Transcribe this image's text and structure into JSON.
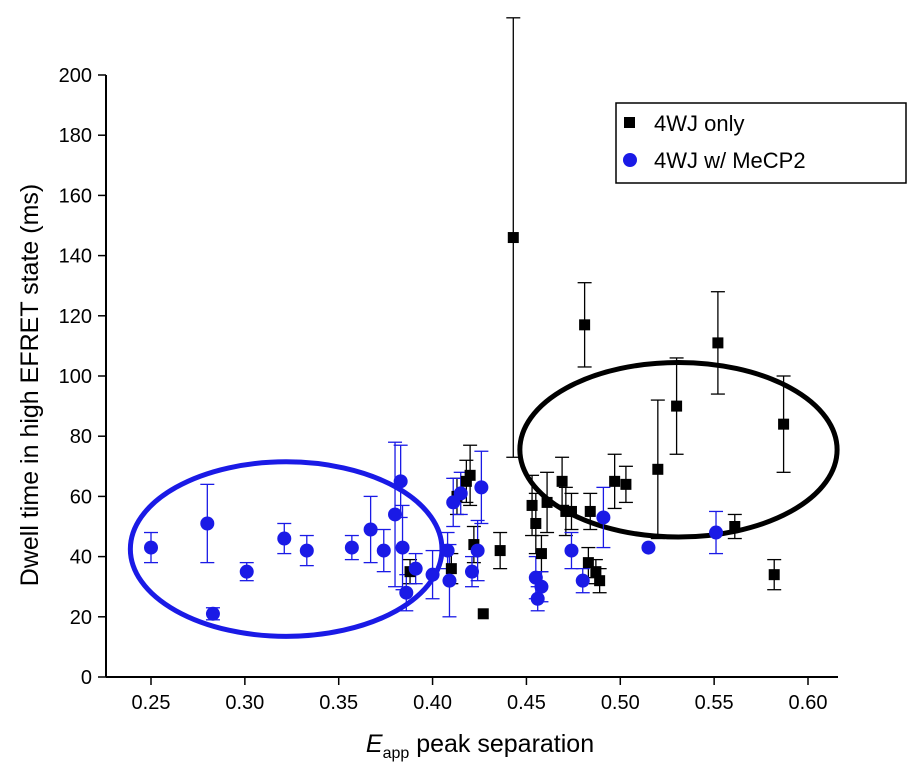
{
  "chart_data": {
    "type": "scatter",
    "title": "",
    "xlabel_main": "E",
    "xlabel_sub": "app",
    "xlabel_rest": " peak separation",
    "ylabel": "Dwell time in high EFRET state (ms)",
    "xlim": [
      0.22,
      0.62
    ],
    "ylim": [
      0,
      200
    ],
    "xticks": [
      "0.25",
      "0.30",
      "0.35",
      "0.40",
      "0.45",
      "0.50",
      "0.55",
      "0.60"
    ],
    "yticks": [
      "0",
      "20",
      "40",
      "60",
      "80",
      "100",
      "120",
      "140",
      "160",
      "180",
      "200"
    ],
    "grid": false,
    "legend_position": "top-right",
    "series": [
      {
        "name": "4WJ only",
        "marker": "square",
        "color": "#000000",
        "points": [
          {
            "x": 0.388,
            "y": 35,
            "err": 4
          },
          {
            "x": 0.41,
            "y": 36,
            "err": 5
          },
          {
            "x": 0.413,
            "y": 60,
            "err": 6
          },
          {
            "x": 0.418,
            "y": 65,
            "err": 7
          },
          {
            "x": 0.42,
            "y": 67,
            "err": 10
          },
          {
            "x": 0.422,
            "y": 44,
            "err": 6
          },
          {
            "x": 0.427,
            "y": 21,
            "err": 0
          },
          {
            "x": 0.436,
            "y": 42,
            "err": 6
          },
          {
            "x": 0.443,
            "y": 146,
            "err": 73
          },
          {
            "x": 0.453,
            "y": 57,
            "err": 10
          },
          {
            "x": 0.455,
            "y": 51,
            "err": 10
          },
          {
            "x": 0.458,
            "y": 41,
            "err": 6
          },
          {
            "x": 0.461,
            "y": 58,
            "err": 10
          },
          {
            "x": 0.469,
            "y": 65,
            "err": 8
          },
          {
            "x": 0.471,
            "y": 55,
            "err": 8
          },
          {
            "x": 0.474,
            "y": 55,
            "err": 6
          },
          {
            "x": 0.481,
            "y": 117,
            "err": 14
          },
          {
            "x": 0.483,
            "y": 38,
            "err": 5
          },
          {
            "x": 0.484,
            "y": 55,
            "err": 6
          },
          {
            "x": 0.487,
            "y": 35,
            "err": 4
          },
          {
            "x": 0.489,
            "y": 32,
            "err": 4
          },
          {
            "x": 0.497,
            "y": 65,
            "err": 9
          },
          {
            "x": 0.503,
            "y": 64,
            "err": 6
          },
          {
            "x": 0.52,
            "y": 69,
            "err": 23
          },
          {
            "x": 0.53,
            "y": 90,
            "err": 16
          },
          {
            "x": 0.552,
            "y": 111,
            "err": 17
          },
          {
            "x": 0.561,
            "y": 50,
            "err": 4
          },
          {
            "x": 0.582,
            "y": 34,
            "err": 5
          },
          {
            "x": 0.587,
            "y": 84,
            "err": 16
          }
        ]
      },
      {
        "name": "4WJ w/ MeCP2",
        "marker": "circle",
        "color": "#1a1ae6",
        "points": [
          {
            "x": 0.25,
            "y": 43,
            "err": 5
          },
          {
            "x": 0.28,
            "y": 51,
            "err": 13
          },
          {
            "x": 0.283,
            "y": 21,
            "err": 2
          },
          {
            "x": 0.301,
            "y": 35,
            "err": 3
          },
          {
            "x": 0.321,
            "y": 46,
            "err": 5
          },
          {
            "x": 0.333,
            "y": 42,
            "err": 5
          },
          {
            "x": 0.357,
            "y": 43,
            "err": 4
          },
          {
            "x": 0.367,
            "y": 49,
            "err": 11
          },
          {
            "x": 0.374,
            "y": 42,
            "err": 7
          },
          {
            "x": 0.38,
            "y": 54,
            "err": 24
          },
          {
            "x": 0.383,
            "y": 65,
            "err": 12
          },
          {
            "x": 0.384,
            "y": 43,
            "err": 14
          },
          {
            "x": 0.386,
            "y": 28,
            "err": 6
          },
          {
            "x": 0.391,
            "y": 36,
            "err": 5
          },
          {
            "x": 0.4,
            "y": 34,
            "err": 8
          },
          {
            "x": 0.408,
            "y": 42,
            "err": 6
          },
          {
            "x": 0.409,
            "y": 32,
            "err": 12
          },
          {
            "x": 0.411,
            "y": 58,
            "err": 8
          },
          {
            "x": 0.415,
            "y": 61,
            "err": 7
          },
          {
            "x": 0.421,
            "y": 35,
            "err": 5
          },
          {
            "x": 0.424,
            "y": 42,
            "err": 10
          },
          {
            "x": 0.426,
            "y": 63,
            "err": 12
          },
          {
            "x": 0.455,
            "y": 33,
            "err": 7
          },
          {
            "x": 0.456,
            "y": 26,
            "err": 4
          },
          {
            "x": 0.458,
            "y": 30,
            "err": 5
          },
          {
            "x": 0.474,
            "y": 42,
            "err": 6
          },
          {
            "x": 0.48,
            "y": 32,
            "err": 4
          },
          {
            "x": 0.491,
            "y": 53,
            "err": 10
          },
          {
            "x": 0.515,
            "y": 43,
            "err": 0
          },
          {
            "x": 0.551,
            "y": 48,
            "err": 7
          }
        ]
      }
    ],
    "annotations": [
      {
        "type": "ellipse",
        "color": "#1a1ae6",
        "cx": 0.322,
        "cy": 42.5,
        "rx": 0.083,
        "ry": 29
      },
      {
        "type": "ellipse",
        "color": "#000000",
        "cx": 0.531,
        "cy": 75.5,
        "rx": 0.0845,
        "ry": 29
      }
    ]
  }
}
